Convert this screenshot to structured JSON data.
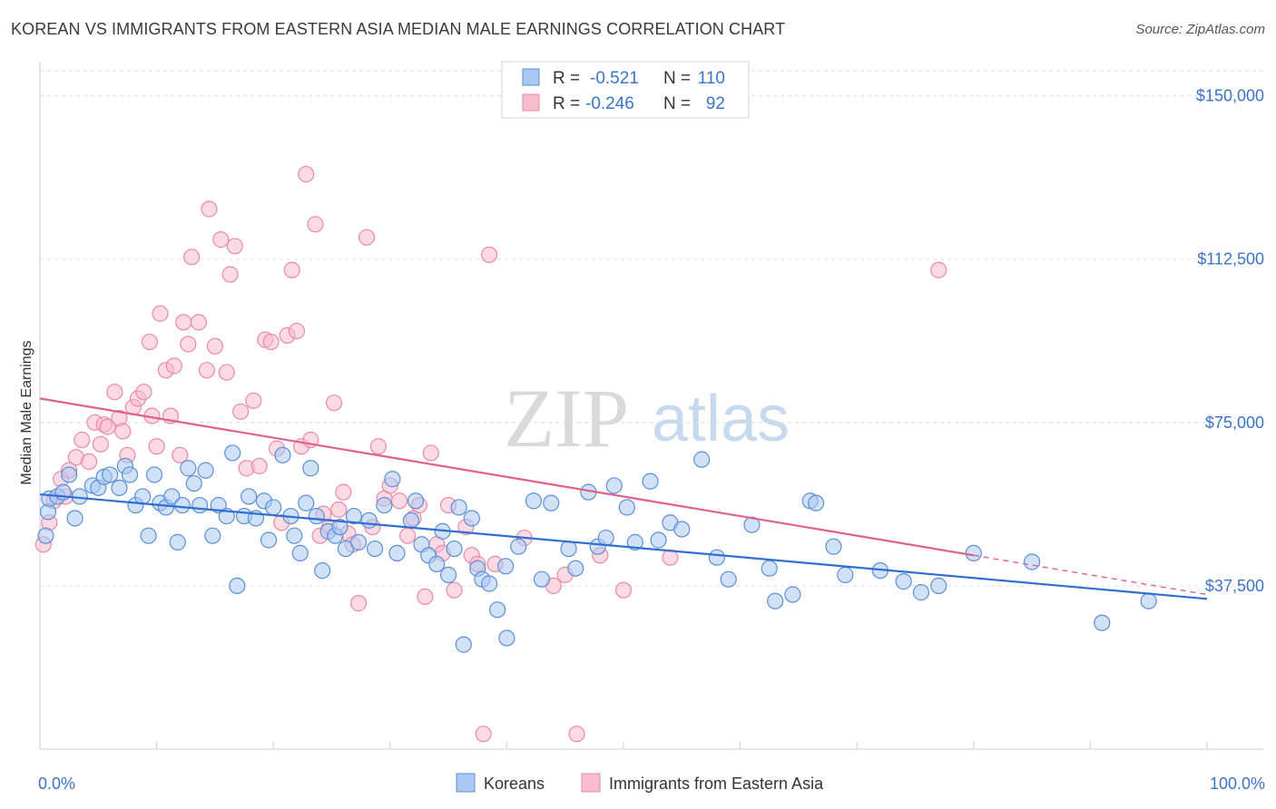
{
  "title": "KOREAN VS IMMIGRANTS FROM EASTERN ASIA MEDIAN MALE EARNINGS CORRELATION CHART",
  "source": "Source: ZipAtlas.com",
  "colors": {
    "blue_fill": "#a9c8f2",
    "blue_stroke": "#5b8fd9",
    "blue_line": "#2f6fd1",
    "pink_fill": "#f7bccd",
    "pink_stroke": "#e98aa8",
    "pink_line": "#e0608b",
    "label_blue": "#3b73c8",
    "grid": "#dddddd"
  },
  "legend": {
    "rows": [
      {
        "r_label": "R =",
        "r_value": "-0.521",
        "n_label": "N =",
        "n_value": "110",
        "series": "Koreans"
      },
      {
        "r_label": "R =",
        "r_value": "-0.246",
        "n_label": "N =",
        "n_value": "92",
        "series": "Immigrants from Eastern Asia"
      }
    ]
  },
  "bottom_legend": [
    "Koreans",
    "Immigrants from Eastern Asia"
  ],
  "watermark": {
    "zip": "ZIP",
    "atlas": "atlas"
  },
  "chart_data": {
    "type": "scatter",
    "title": "KOREAN VS IMMIGRANTS FROM EASTERN ASIA MEDIAN MALE EARNINGS CORRELATION CHART",
    "xlabel": "",
    "ylabel": "Median Male Earnings",
    "xlim": [
      0,
      100
    ],
    "ylim": [
      0,
      157000
    ],
    "x_tick_labels": [
      "0.0%",
      "100.0%"
    ],
    "y_ticks": [
      37500,
      75000,
      112500,
      150000
    ],
    "y_tick_labels": [
      "$37,500",
      "$75,000",
      "$112,500",
      "$150,000"
    ],
    "series": [
      {
        "name": "Koreans",
        "R": -0.521,
        "N": 110,
        "trend": {
          "x0": 0,
          "y0": 58500,
          "x1": 100,
          "y1": 34500
        },
        "points": [
          [
            0.5,
            49000
          ],
          [
            0.7,
            54500
          ],
          [
            0.8,
            57500
          ],
          [
            1.5,
            58000
          ],
          [
            2,
            59000
          ],
          [
            2.5,
            63000
          ],
          [
            3,
            53000
          ],
          [
            3.4,
            58000
          ],
          [
            4.5,
            60500
          ],
          [
            5,
            60000
          ],
          [
            5.5,
            62500
          ],
          [
            6,
            63000
          ],
          [
            6.8,
            60000
          ],
          [
            7.3,
            65000
          ],
          [
            7.7,
            63000
          ],
          [
            8.2,
            56000
          ],
          [
            8.8,
            58000
          ],
          [
            9.3,
            49000
          ],
          [
            9.8,
            63000
          ],
          [
            10.3,
            56500
          ],
          [
            10.8,
            55500
          ],
          [
            11.3,
            58000
          ],
          [
            11.8,
            47500
          ],
          [
            12.2,
            56000
          ],
          [
            12.7,
            64500
          ],
          [
            13.2,
            61000
          ],
          [
            13.7,
            56000
          ],
          [
            14.2,
            64000
          ],
          [
            14.8,
            49000
          ],
          [
            15.3,
            56000
          ],
          [
            16,
            53500
          ],
          [
            16.5,
            68000
          ],
          [
            16.9,
            37500
          ],
          [
            17.5,
            53500
          ],
          [
            17.9,
            58000
          ],
          [
            18.5,
            53000
          ],
          [
            19.2,
            57000
          ],
          [
            19.6,
            48000
          ],
          [
            20,
            55500
          ],
          [
            20.8,
            67500
          ],
          [
            21.5,
            53500
          ],
          [
            21.8,
            49000
          ],
          [
            22.3,
            45000
          ],
          [
            22.8,
            56500
          ],
          [
            23.2,
            64500
          ],
          [
            23.7,
            53500
          ],
          [
            24.2,
            41000
          ],
          [
            24.7,
            50000
          ],
          [
            25.3,
            49000
          ],
          [
            25.7,
            51000
          ],
          [
            26.2,
            46000
          ],
          [
            26.9,
            53500
          ],
          [
            27.3,
            47500
          ],
          [
            28.2,
            52500
          ],
          [
            28.7,
            46000
          ],
          [
            29.5,
            56000
          ],
          [
            30.2,
            62000
          ],
          [
            30.6,
            45000
          ],
          [
            31.8,
            52500
          ],
          [
            32.2,
            57000
          ],
          [
            32.7,
            47000
          ],
          [
            33.3,
            44500
          ],
          [
            34,
            42500
          ],
          [
            34.5,
            50000
          ],
          [
            35,
            40000
          ],
          [
            35.5,
            46000
          ],
          [
            35.9,
            55500
          ],
          [
            36.3,
            24000
          ],
          [
            37,
            53000
          ],
          [
            37.5,
            41500
          ],
          [
            37.9,
            39000
          ],
          [
            38.5,
            38000
          ],
          [
            39.2,
            32000
          ],
          [
            39.9,
            42000
          ],
          [
            40,
            25500
          ],
          [
            41,
            46500
          ],
          [
            42.3,
            57000
          ],
          [
            43,
            39000
          ],
          [
            43.8,
            56500
          ],
          [
            45.3,
            46000
          ],
          [
            45.9,
            41500
          ],
          [
            47,
            59000
          ],
          [
            47.8,
            46500
          ],
          [
            48.5,
            48500
          ],
          [
            49.2,
            60500
          ],
          [
            50.3,
            55500
          ],
          [
            51,
            47500
          ],
          [
            52.3,
            61500
          ],
          [
            53,
            48000
          ],
          [
            54,
            52000
          ],
          [
            55,
            50500
          ],
          [
            56.7,
            66500
          ],
          [
            58,
            44000
          ],
          [
            59,
            39000
          ],
          [
            61,
            51500
          ],
          [
            62.5,
            41500
          ],
          [
            63,
            34000
          ],
          [
            64.5,
            35500
          ],
          [
            66,
            57000
          ],
          [
            66.5,
            56500
          ],
          [
            68,
            46500
          ],
          [
            69,
            40000
          ],
          [
            72,
            41000
          ],
          [
            74,
            38500
          ],
          [
            75.5,
            36000
          ],
          [
            77,
            37500
          ],
          [
            80,
            45000
          ],
          [
            85,
            43000
          ],
          [
            91,
            29000
          ],
          [
            95,
            34000
          ]
        ]
      },
      {
        "name": "Immigrants from Eastern Asia",
        "R": -0.246,
        "N": 92,
        "trend": {
          "x0": 0,
          "y0": 80500,
          "x1": 80,
          "y1": 44500,
          "dashed_to_x": 100,
          "dashed_to_y": 35500
        },
        "points": [
          [
            0.3,
            47000
          ],
          [
            0.8,
            52000
          ],
          [
            1.2,
            57000
          ],
          [
            1.8,
            62000
          ],
          [
            2.2,
            58000
          ],
          [
            2.5,
            64000
          ],
          [
            3.1,
            67000
          ],
          [
            3.6,
            71000
          ],
          [
            4.2,
            66000
          ],
          [
            4.7,
            75000
          ],
          [
            5.2,
            70000
          ],
          [
            5.5,
            74500
          ],
          [
            5.8,
            74000
          ],
          [
            6.4,
            82000
          ],
          [
            6.8,
            76000
          ],
          [
            7.1,
            73000
          ],
          [
            7.5,
            67500
          ],
          [
            8,
            78500
          ],
          [
            8.4,
            80500
          ],
          [
            8.9,
            82000
          ],
          [
            9.4,
            93500
          ],
          [
            9.6,
            76500
          ],
          [
            10,
            69500
          ],
          [
            10.3,
            100000
          ],
          [
            10.8,
            87000
          ],
          [
            11.2,
            76500
          ],
          [
            11.5,
            88000
          ],
          [
            12,
            67500
          ],
          [
            12.3,
            98000
          ],
          [
            12.7,
            93000
          ],
          [
            13,
            113000
          ],
          [
            13.6,
            98000
          ],
          [
            14.3,
            87000
          ],
          [
            14.5,
            124000
          ],
          [
            15,
            92500
          ],
          [
            15.5,
            117000
          ],
          [
            16,
            86500
          ],
          [
            16.3,
            109000
          ],
          [
            16.7,
            115500
          ],
          [
            17.2,
            77500
          ],
          [
            17.7,
            64500
          ],
          [
            18.3,
            80000
          ],
          [
            18.8,
            65000
          ],
          [
            19.3,
            94000
          ],
          [
            19.8,
            93500
          ],
          [
            20.3,
            69000
          ],
          [
            20.7,
            52000
          ],
          [
            21.2,
            95000
          ],
          [
            21.6,
            110000
          ],
          [
            22,
            96000
          ],
          [
            22.4,
            69500
          ],
          [
            22.8,
            132000
          ],
          [
            23.2,
            71000
          ],
          [
            23.6,
            120500
          ],
          [
            24,
            49000
          ],
          [
            24.3,
            54000
          ],
          [
            24.8,
            51000
          ],
          [
            25.2,
            79500
          ],
          [
            25.6,
            55000
          ],
          [
            26,
            59000
          ],
          [
            26.4,
            49500
          ],
          [
            26.8,
            47000
          ],
          [
            27.3,
            33500
          ],
          [
            28,
            117500
          ],
          [
            28.5,
            51000
          ],
          [
            29,
            69500
          ],
          [
            29.5,
            57500
          ],
          [
            30,
            60500
          ],
          [
            30.8,
            57000
          ],
          [
            31.5,
            49000
          ],
          [
            32,
            53000
          ],
          [
            32.5,
            56000
          ],
          [
            33,
            35000
          ],
          [
            33.5,
            68000
          ],
          [
            34,
            47000
          ],
          [
            34.5,
            45000
          ],
          [
            35,
            56000
          ],
          [
            35.5,
            36500
          ],
          [
            36.5,
            51000
          ],
          [
            37,
            44500
          ],
          [
            37.5,
            42500
          ],
          [
            38,
            3500
          ],
          [
            38.5,
            113500
          ],
          [
            39,
            42500
          ],
          [
            41.5,
            48500
          ],
          [
            44,
            37500
          ],
          [
            45,
            40000
          ],
          [
            46,
            3500
          ],
          [
            48,
            44500
          ],
          [
            50,
            36500
          ],
          [
            54,
            44000
          ],
          [
            77,
            110000
          ]
        ]
      }
    ]
  }
}
